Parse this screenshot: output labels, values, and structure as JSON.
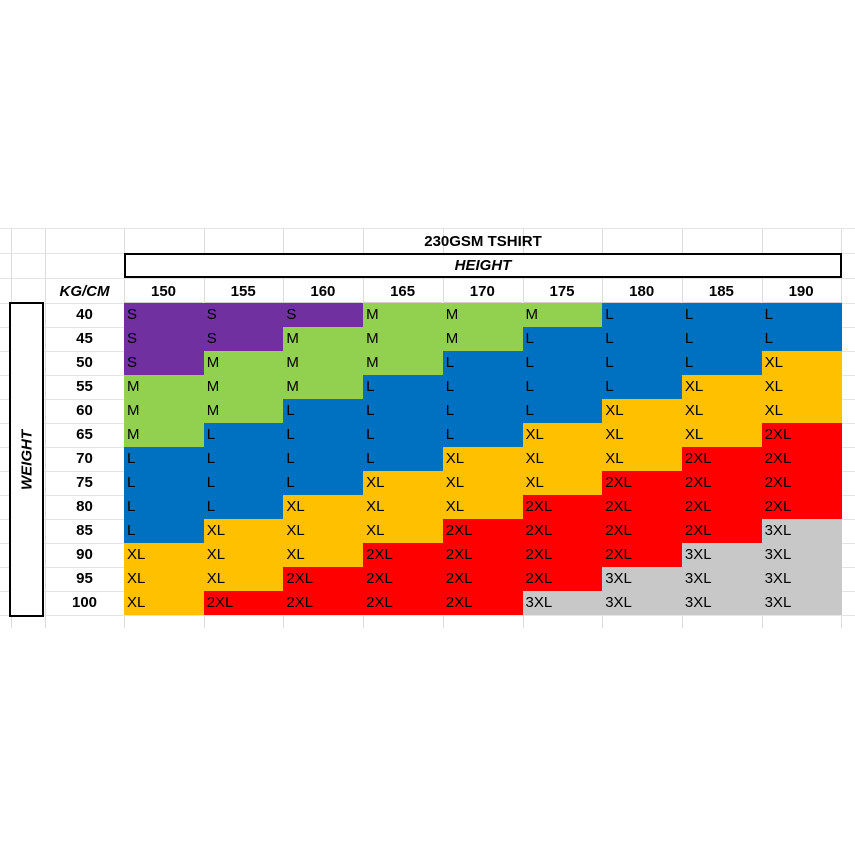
{
  "title": "230GSM TSHIRT",
  "height_label": "HEIGHT",
  "weight_label": "WEIGHT",
  "unit_label": "KG/CM",
  "heights": [
    "150",
    "155",
    "160",
    "165",
    "170",
    "175",
    "180",
    "185",
    "190"
  ],
  "weights": [
    "40",
    "45",
    "50",
    "55",
    "60",
    "65",
    "70",
    "75",
    "80",
    "85",
    "90",
    "95",
    "100"
  ],
  "sizes": [
    [
      "S",
      "S",
      "S",
      "M",
      "M",
      "M",
      "L",
      "L",
      "L"
    ],
    [
      "S",
      "S",
      "M",
      "M",
      "M",
      "L",
      "L",
      "L",
      "L"
    ],
    [
      "S",
      "M",
      "M",
      "M",
      "L",
      "L",
      "L",
      "L",
      "XL"
    ],
    [
      "M",
      "M",
      "M",
      "L",
      "L",
      "L",
      "L",
      "XL",
      "XL"
    ],
    [
      "M",
      "M",
      "L",
      "L",
      "L",
      "L",
      "XL",
      "XL",
      "XL"
    ],
    [
      "M",
      "L",
      "L",
      "L",
      "L",
      "XL",
      "XL",
      "XL",
      "2XL"
    ],
    [
      "L",
      "L",
      "L",
      "L",
      "XL",
      "XL",
      "XL",
      "2XL",
      "2XL"
    ],
    [
      "L",
      "L",
      "L",
      "XL",
      "XL",
      "XL",
      "2XL",
      "2XL",
      "2XL"
    ],
    [
      "L",
      "L",
      "XL",
      "XL",
      "XL",
      "2XL",
      "2XL",
      "2XL",
      "2XL"
    ],
    [
      "L",
      "XL",
      "XL",
      "XL",
      "2XL",
      "2XL",
      "2XL",
      "2XL",
      "3XL"
    ],
    [
      "XL",
      "XL",
      "XL",
      "2XL",
      "2XL",
      "2XL",
      "2XL",
      "3XL",
      "3XL"
    ],
    [
      "XL",
      "XL",
      "2XL",
      "2XL",
      "2XL",
      "2XL",
      "3XL",
      "3XL",
      "3XL"
    ],
    [
      "XL",
      "2XL",
      "2XL",
      "2XL",
      "2XL",
      "3XL",
      "3XL",
      "3XL",
      "3XL"
    ]
  ],
  "size_colors": {
    "S": "#7030a0",
    "M": "#92d050",
    "L": "#0070c0",
    "XL": "#ffc000",
    "2XL": "#ff0000",
    "3XL": "#c8c8c8"
  }
}
